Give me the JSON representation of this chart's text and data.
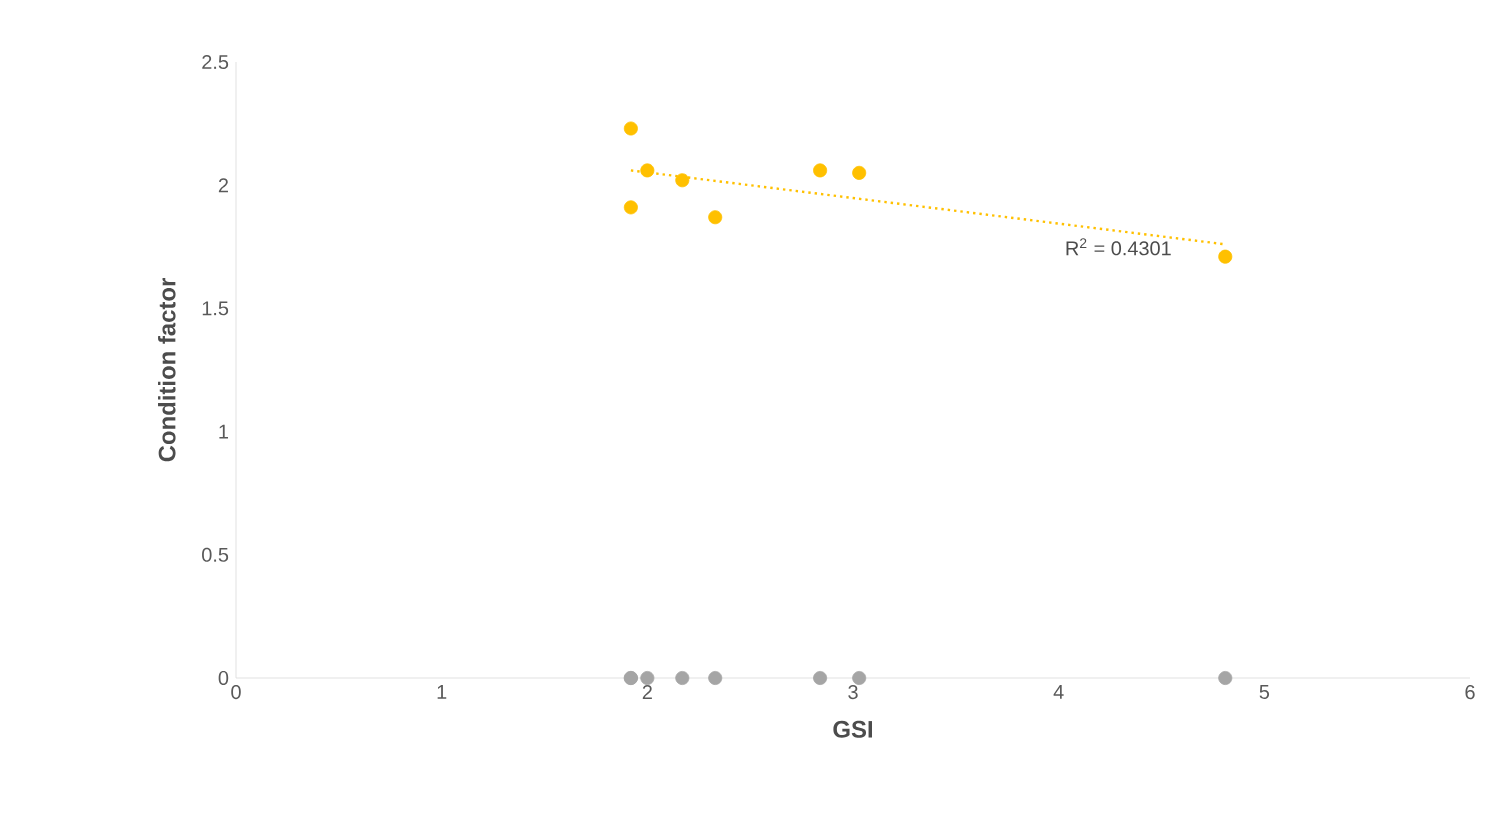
{
  "chart_data": {
    "type": "scatter",
    "xlabel": "GSI",
    "ylabel": "Condition factor",
    "xlim": [
      0,
      6
    ],
    "ylim": [
      0,
      2.5
    ],
    "xticks": [
      0,
      1,
      2,
      3,
      4,
      5,
      6
    ],
    "yticks": [
      0,
      0.5,
      1,
      1.5,
      2,
      2.5
    ],
    "grid": false,
    "legend": false,
    "marker": "circle",
    "series": [
      {
        "color": "#ffc000",
        "x": [
          1.92,
          1.92,
          2.0,
          2.17,
          2.33,
          2.84,
          3.03,
          4.81
        ],
        "values": [
          2.23,
          1.91,
          2.06,
          2.02,
          1.87,
          2.06,
          2.05,
          1.71
        ]
      },
      {
        "color": "#a5a5a5",
        "x": [
          1.92,
          1.92,
          2.0,
          2.17,
          2.33,
          2.84,
          3.03,
          4.81
        ],
        "values": [
          0,
          0,
          0,
          0,
          0,
          0,
          0,
          0
        ]
      },
      {
        "type": "line",
        "color": "#ffc000",
        "line_style": "dotted",
        "marker": "none",
        "x": [
          1.92,
          4.81
        ],
        "values": [
          2.06,
          1.76
        ]
      }
    ],
    "annotations": [
      "R$^{2}$ = 0.4301"
    ]
  }
}
